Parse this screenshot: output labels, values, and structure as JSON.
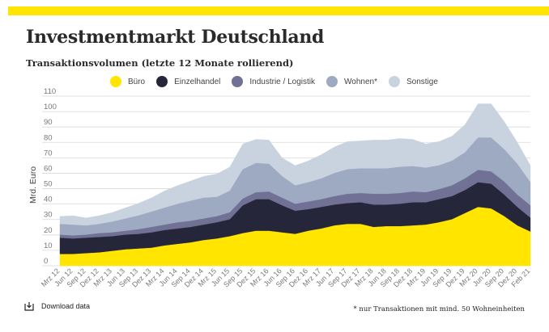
{
  "brand": {
    "accent": "#ffe500"
  },
  "header": {
    "title": "Investmentmarkt Deutschland",
    "subtitle": "Transaktionsvolumen (letzte 12 Monate rollierend)"
  },
  "footer": {
    "download_label": "Download data",
    "download_icon": "download-icon",
    "footnote": "* nur Transaktionen mit mind. 50 Wohneinheiten"
  },
  "chart_data": {
    "type": "area",
    "stacked": true,
    "ylabel": "Mrd. Euro",
    "ylim": [
      0,
      110
    ],
    "yticks": [
      0,
      10,
      20,
      30,
      40,
      50,
      60,
      70,
      80,
      90,
      100,
      110
    ],
    "grid": true,
    "legend_position": "top",
    "x_tick_labels": [
      "Mrz 12",
      "Jun 12",
      "Sep 12",
      "Dez 12",
      "Mrz 13",
      "Jun 13",
      "Sep 13",
      "Dez 13",
      "Mrz 14",
      "Jun 14",
      "Sep 14",
      "Dez 14",
      "Mrz 15",
      "Jun 15",
      "Sep 15",
      "Dez 15",
      "Mrz 16",
      "Jun 16",
      "Sep 16",
      "Dez 16",
      "Mrz 17",
      "Jun 17",
      "Sep 17",
      "Dez 17",
      "Mrz 18",
      "Jun 18",
      "Sep 18",
      "Dez 18",
      "Mrz 19",
      "Jun 19",
      "Sep 19",
      "Dez 19",
      "Mrz 20",
      "Jun 20",
      "Sep 20",
      "Dez 20",
      "Feb 21"
    ],
    "x": [
      "Mrz 12",
      "Jun 12",
      "Sep 12",
      "Dez 12",
      "Mrz 13",
      "Jun 13",
      "Sep 13",
      "Dez 13",
      "Mrz 14",
      "Jun 14",
      "Sep 14",
      "Dez 14",
      "Mrz 15",
      "Jun 15",
      "Sep 15",
      "Dez 15",
      "Mrz 16",
      "Jun 16",
      "Sep 16",
      "Dez 16",
      "Mrz 17",
      "Jun 17",
      "Sep 17",
      "Dez 17",
      "Mrz 18",
      "Jun 18",
      "Sep 18",
      "Dez 18",
      "Mrz 19",
      "Jun 19",
      "Sep 19",
      "Dez 19",
      "Mrz 20",
      "Jun 20",
      "Sep 20",
      "Dez 20",
      "Feb 21"
    ],
    "series": [
      {
        "name": "Büro",
        "color": "#ffe500",
        "values": [
          7.5,
          7.5,
          8,
          8.5,
          9.5,
          10.5,
          11,
          11.5,
          13,
          14,
          15,
          16.5,
          17.5,
          19,
          21,
          22.5,
          22.5,
          21.5,
          20.5,
          22.5,
          24,
          26,
          27,
          27,
          25,
          25.5,
          25.5,
          26,
          26.5,
          28,
          30,
          34,
          38,
          37,
          32,
          26,
          22
        ]
      },
      {
        "name": "Einzelhandel",
        "color": "#26263a",
        "values": [
          10.5,
          10,
          10,
          10,
          9.5,
          9.5,
          9.5,
          10,
          10,
          10,
          10,
          10,
          10.5,
          11,
          18,
          20.5,
          20.5,
          17.5,
          15,
          14,
          14,
          13.5,
          13.5,
          14,
          14.5,
          14,
          14.5,
          15,
          14.5,
          15,
          15,
          15,
          16,
          16,
          14,
          12,
          9
        ]
      },
      {
        "name": "Industrie / Logistik",
        "color": "#717196",
        "values": [
          2,
          2,
          2,
          2.5,
          2.5,
          2.5,
          3,
          3.5,
          3.5,
          4,
          4,
          4,
          4,
          4.5,
          4.5,
          4.5,
          5,
          5,
          4.5,
          5,
          5,
          5.5,
          6,
          6,
          7,
          7,
          7,
          7,
          6.5,
          6.5,
          7,
          7.5,
          8,
          8,
          8.5,
          8,
          8
        ]
      },
      {
        "name": "Wohnen*",
        "color": "#9eaac2",
        "values": [
          7,
          7,
          6,
          6,
          7,
          8,
          9,
          10,
          11,
          12,
          13,
          13.5,
          12.5,
          14,
          19,
          19,
          18,
          14,
          12,
          12.5,
          13.5,
          15,
          16,
          16,
          16.5,
          16.5,
          17,
          16.5,
          16,
          15.5,
          16,
          17,
          21,
          22,
          21,
          20,
          15
        ]
      },
      {
        "name": "Sonstige",
        "color": "#c9d3e0",
        "values": [
          5,
          6,
          5,
          5.5,
          6,
          7,
          8,
          9,
          11,
          12,
          13,
          14,
          15,
          15.5,
          16.5,
          15.5,
          15.5,
          12,
          13,
          14,
          15.5,
          17,
          18,
          18,
          18.5,
          18.5,
          18.5,
          17.5,
          15.5,
          15.5,
          16,
          18,
          22,
          22,
          18,
          14,
          11
        ]
      }
    ]
  }
}
